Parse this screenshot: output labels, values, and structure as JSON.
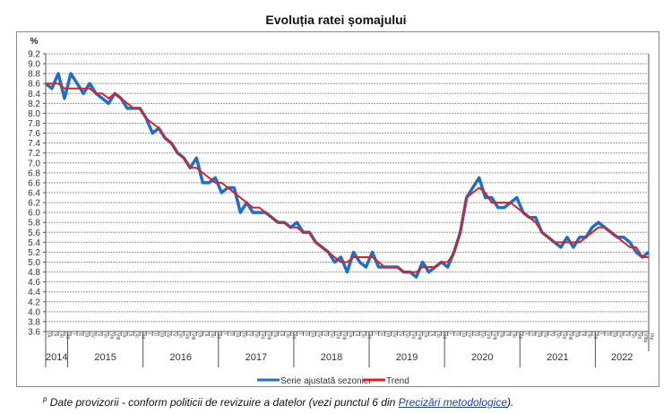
{
  "chart_data": {
    "type": "line",
    "title": "Evoluția ratei șomajului",
    "ylabel": "%",
    "ylim": [
      3.6,
      9.2
    ],
    "ytick_step": 0.2,
    "grid": true,
    "legend_position": "bottom-center",
    "months": [
      "IX",
      "X",
      "XI",
      "XII",
      "I",
      "II",
      "III",
      "IV",
      "V",
      "VI",
      "VII",
      "VIII",
      "IX",
      "X",
      "XI",
      "XII",
      "I",
      "II",
      "III",
      "IV",
      "V",
      "VI",
      "VII",
      "VIII",
      "IX",
      "X",
      "XI",
      "XII",
      "I",
      "II",
      "III",
      "IV",
      "V",
      "VI",
      "VII",
      "VIII",
      "IX",
      "X",
      "XI",
      "XII",
      "I",
      "II",
      "III",
      "IV",
      "V",
      "VI",
      "VII",
      "VIII",
      "IX",
      "X",
      "XI",
      "XII",
      "I",
      "II",
      "III",
      "IV",
      "V",
      "VI",
      "VII",
      "VIII",
      "IX",
      "X",
      "XI",
      "XII",
      "I",
      "II",
      "III",
      "IV",
      "V",
      "VI",
      "VII",
      "VIII",
      "IX",
      "X",
      "XI",
      "XII",
      "I",
      "II",
      "III",
      "IV",
      "V",
      "VI",
      "VII",
      "VIII",
      "IX",
      "X",
      "XI",
      "XII",
      "I",
      "II",
      "III",
      "IV",
      "V",
      "VI",
      "VII",
      "VIIIp",
      "IXp"
    ],
    "years": [
      {
        "label": "2014",
        "months": 4
      },
      {
        "label": "2015",
        "months": 12
      },
      {
        "label": "2016",
        "months": 12
      },
      {
        "label": "2017",
        "months": 12
      },
      {
        "label": "2018",
        "months": 12
      },
      {
        "label": "2019",
        "months": 12
      },
      {
        "label": "2020",
        "months": 12
      },
      {
        "label": "2021",
        "months": 12
      },
      {
        "label": "2022",
        "months": 9
      }
    ],
    "series": [
      {
        "name": "Serie ajustată sezonier",
        "color": "#1f6fc5",
        "values": [
          8.6,
          8.5,
          8.8,
          8.3,
          8.8,
          8.6,
          8.4,
          8.6,
          8.4,
          8.3,
          8.2,
          8.4,
          8.3,
          8.1,
          8.1,
          8.1,
          7.9,
          7.6,
          7.7,
          7.5,
          7.4,
          7.2,
          7.1,
          6.9,
          7.1,
          6.6,
          6.6,
          6.7,
          6.4,
          6.5,
          6.5,
          6.0,
          6.2,
          6.0,
          6.0,
          6.0,
          5.9,
          5.8,
          5.8,
          5.7,
          5.8,
          5.6,
          5.6,
          5.4,
          5.3,
          5.2,
          5.0,
          5.1,
          4.8,
          5.2,
          5.0,
          4.9,
          5.2,
          4.9,
          4.9,
          4.9,
          4.9,
          4.8,
          4.8,
          4.7,
          5.0,
          4.8,
          4.9,
          5.0,
          4.9,
          5.2,
          5.6,
          6.3,
          6.5,
          6.7,
          6.3,
          6.3,
          6.1,
          6.1,
          6.2,
          6.3,
          6.0,
          5.9,
          5.9,
          5.6,
          5.5,
          5.4,
          5.3,
          5.5,
          5.3,
          5.5,
          5.5,
          5.7,
          5.8,
          5.7,
          5.6,
          5.5,
          5.5,
          5.4,
          5.2,
          5.1,
          5.2
        ]
      },
      {
        "name": "Trend",
        "color": "#e02020",
        "values": [
          8.6,
          8.6,
          8.6,
          8.5,
          8.5,
          8.5,
          8.5,
          8.5,
          8.4,
          8.4,
          8.3,
          8.4,
          8.3,
          8.2,
          8.1,
          8.1,
          7.9,
          7.8,
          7.7,
          7.5,
          7.4,
          7.2,
          7.1,
          6.9,
          6.9,
          6.8,
          6.7,
          6.6,
          6.6,
          6.5,
          6.4,
          6.3,
          6.2,
          6.1,
          6.1,
          6.0,
          5.9,
          5.8,
          5.8,
          5.7,
          5.7,
          5.6,
          5.6,
          5.4,
          5.3,
          5.2,
          5.1,
          5.0,
          5.0,
          5.1,
          5.1,
          5.1,
          5.1,
          5.0,
          4.9,
          4.9,
          4.9,
          4.8,
          4.8,
          4.8,
          4.9,
          4.9,
          4.9,
          5.0,
          5.0,
          5.2,
          5.6,
          6.3,
          6.4,
          6.5,
          6.4,
          6.2,
          6.2,
          6.2,
          6.2,
          6.1,
          6.0,
          5.9,
          5.8,
          5.6,
          5.5,
          5.4,
          5.4,
          5.4,
          5.4,
          5.4,
          5.5,
          5.6,
          5.7,
          5.7,
          5.6,
          5.5,
          5.4,
          5.3,
          5.3,
          5.1,
          5.1
        ]
      }
    ]
  },
  "footnote": {
    "marker": "p",
    "text": " Date provizorii - conform politicii de revizuire a datelor (vezi punctul 6 din ",
    "link": "Precizări metodologice",
    "tail": ")."
  }
}
